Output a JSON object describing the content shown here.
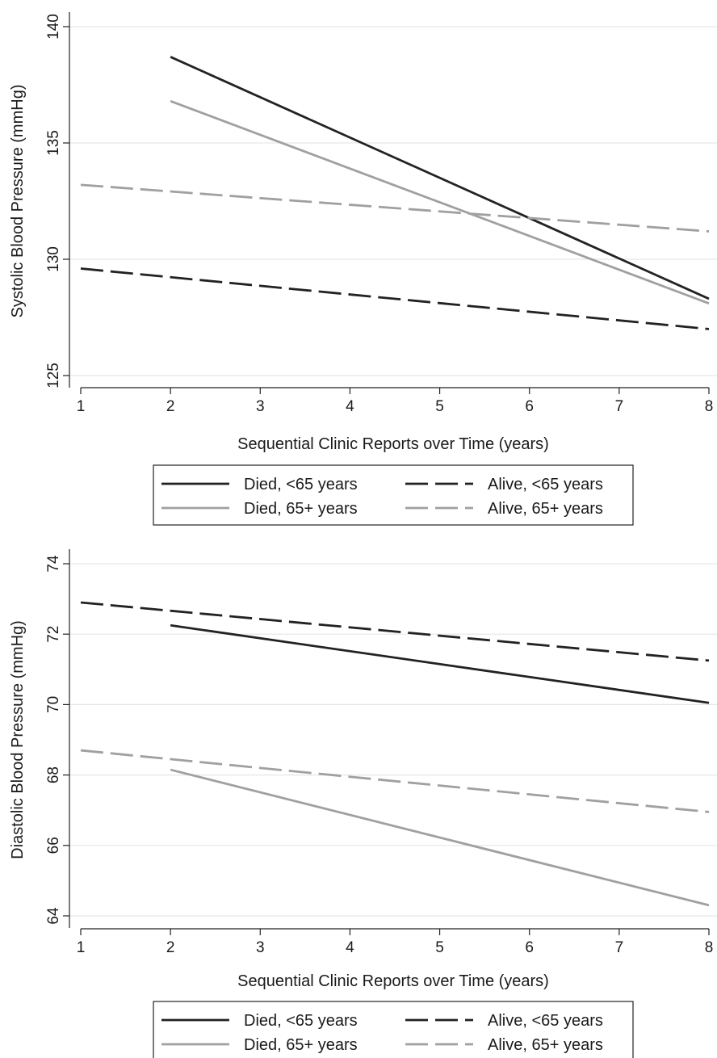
{
  "chart_data": [
    {
      "type": "line",
      "ylabel": "Systolic Blood Pressure (mmHg)",
      "xlabel": "Sequential Clinic Reports over Time (years)",
      "xlim": [
        1,
        8
      ],
      "ylim": [
        125,
        140
      ],
      "xticks": [
        "1",
        "2",
        "3",
        "4",
        "5",
        "6",
        "7",
        "8"
      ],
      "yticks": [
        "125",
        "130",
        "135",
        "140"
      ],
      "grid": "horizontal",
      "legend_position": "bottom",
      "series": [
        {
          "name": "Died, <65 years",
          "color": "#222222",
          "style": "solid",
          "x": [
            2,
            8
          ],
          "y": [
            138.7,
            128.3
          ]
        },
        {
          "name": "Alive, <65 years",
          "color": "#222222",
          "style": "dashed",
          "x": [
            1,
            8
          ],
          "y": [
            129.6,
            127.0
          ]
        },
        {
          "name": "Died, 65+ years",
          "color": "#a0a0a0",
          "style": "solid",
          "x": [
            2,
            8
          ],
          "y": [
            136.8,
            128.1
          ]
        },
        {
          "name": "Alive, 65+ years",
          "color": "#a0a0a0",
          "style": "dashed",
          "x": [
            1,
            8
          ],
          "y": [
            133.2,
            131.2
          ]
        }
      ]
    },
    {
      "type": "line",
      "ylabel": "Diastolic Blood Pressure (mmHg)",
      "xlabel": "Sequential Clinic Reports over Time (years)",
      "xlim": [
        1,
        8
      ],
      "ylim": [
        64,
        74
      ],
      "xticks": [
        "1",
        "2",
        "3",
        "4",
        "5",
        "6",
        "7",
        "8"
      ],
      "yticks": [
        "64",
        "66",
        "68",
        "70",
        "72",
        "74"
      ],
      "grid": "horizontal",
      "legend_position": "bottom",
      "series": [
        {
          "name": "Died, <65 years",
          "color": "#222222",
          "style": "solid",
          "x": [
            2,
            8
          ],
          "y": [
            72.25,
            70.05
          ]
        },
        {
          "name": "Alive, <65 years",
          "color": "#222222",
          "style": "dashed",
          "x": [
            1,
            8
          ],
          "y": [
            72.9,
            71.25
          ]
        },
        {
          "name": "Died, 65+ years",
          "color": "#a0a0a0",
          "style": "solid",
          "x": [
            2,
            8
          ],
          "y": [
            68.15,
            64.3
          ]
        },
        {
          "name": "Alive, 65+ years",
          "color": "#a0a0a0",
          "style": "dashed",
          "x": [
            1,
            8
          ],
          "y": [
            68.7,
            66.95
          ]
        }
      ]
    }
  ]
}
